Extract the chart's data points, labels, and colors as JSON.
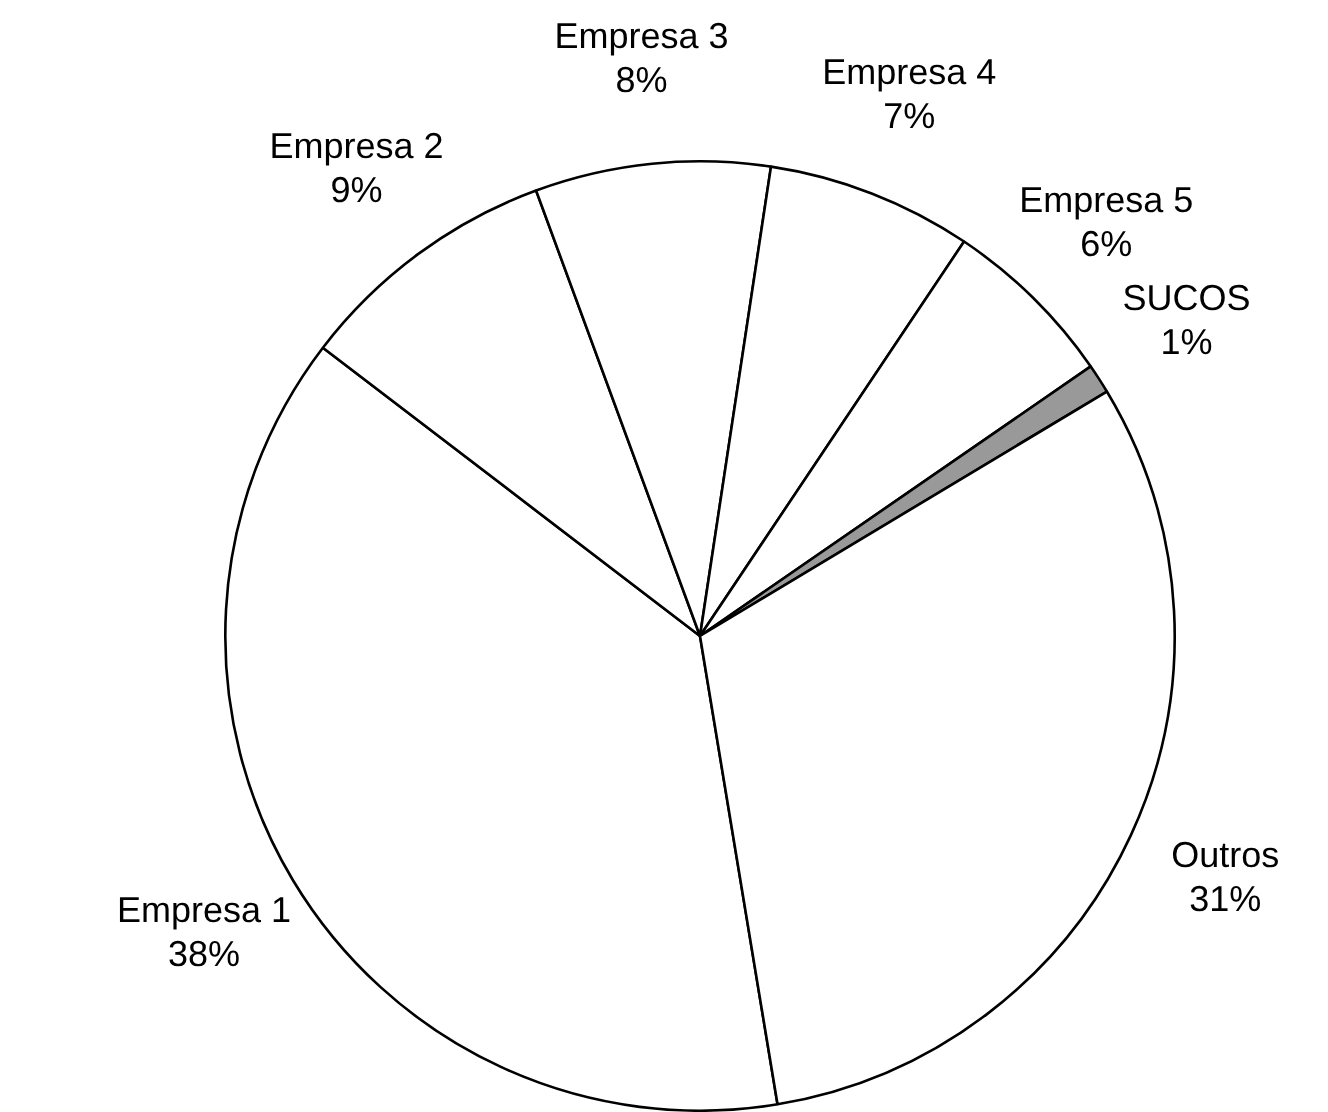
{
  "chart_data": {
    "type": "pie",
    "categories": [
      "Empresa 1",
      "Empresa 2",
      "Empresa 3",
      "Empresa 4",
      "Empresa 5",
      "SUCOS",
      "Outros"
    ],
    "values": [
      38,
      9,
      8,
      7,
      6,
      1,
      31
    ],
    "value_labels": [
      "38%",
      "9%",
      "8%",
      "7%",
      "6%",
      "1%",
      "31%"
    ],
    "colors": [
      "#ffffff",
      "#ffffff",
      "#ffffff",
      "#ffffff",
      "#ffffff",
      "#999999",
      "#ffffff"
    ],
    "legend": false
  }
}
